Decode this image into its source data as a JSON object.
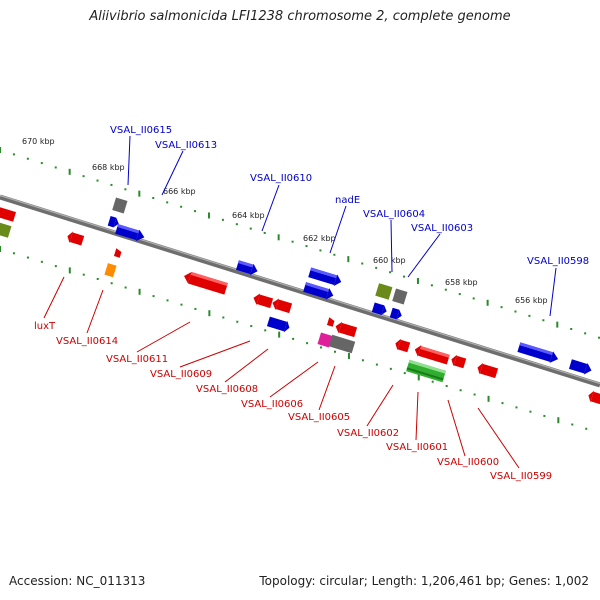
{
  "title": "Aliivibrio salmonicida LFI1238 chromosome 2, complete genome",
  "accession": "Accession: NC_011313",
  "footer_info": "Topology: circular; Length: 1,206,461 bp; Genes: 1,002",
  "colors": {
    "forward_label": "#0000cc",
    "reverse_label": "#cc0000",
    "tick_green": "#2a8a2a",
    "backbone": "#888888"
  },
  "scale_labels": [
    "670 kbp",
    "668 kbp",
    "666 kbp",
    "664 kbp",
    "662 kbp",
    "660 kbp",
    "658 kbp",
    "656 kbp"
  ],
  "forward_genes": [
    "VSAL_II0615",
    "VSAL_II0613",
    "VSAL_II0610",
    "nadE",
    "VSAL_II0604",
    "VSAL_II0603",
    "VSAL_II0598"
  ],
  "reverse_genes": [
    "luxT",
    "VSAL_II0614",
    "VSAL_II0611",
    "VSAL_II0609",
    "VSAL_II0608",
    "VSAL_II0606",
    "VSAL_II0605",
    "VSAL_II0602",
    "VSAL_II0601",
    "VSAL_II0600",
    "VSAL_II0599"
  ]
}
